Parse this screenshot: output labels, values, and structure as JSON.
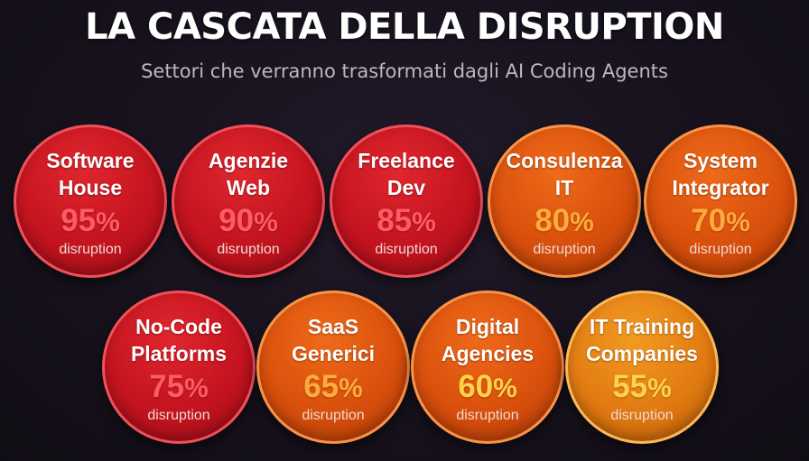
{
  "header": {
    "title": "LA CASCATA DELLA DISRUPTION",
    "subtitle": "Settori che verranno trasformati dagli AI Coding Agents"
  },
  "items": [
    {
      "line1": "Software",
      "line2": "House",
      "value": "95",
      "unit": "%",
      "label": "disruption",
      "fill": "red",
      "value_color": "red"
    },
    {
      "line1": "Agenzie",
      "line2": "Web",
      "value": "90",
      "unit": "%",
      "label": "disruption",
      "fill": "red",
      "value_color": "red"
    },
    {
      "line1": "Freelance",
      "line2": "Dev",
      "value": "85",
      "unit": "%",
      "label": "disruption",
      "fill": "red",
      "value_color": "red"
    },
    {
      "line1": "Consulenza",
      "line2": "IT",
      "value": "80",
      "unit": "%",
      "label": "disruption",
      "fill": "orange",
      "value_color": "orange"
    },
    {
      "line1": "System",
      "line2": "Integrator",
      "value": "70",
      "unit": "%",
      "label": "disruption",
      "fill": "orange",
      "value_color": "orange"
    },
    {
      "line1": "No-Code",
      "line2": "Platforms",
      "value": "75",
      "unit": "%",
      "label": "disruption",
      "fill": "red",
      "value_color": "red"
    },
    {
      "line1": "SaaS",
      "line2": "Generici",
      "value": "65",
      "unit": "%",
      "label": "disruption",
      "fill": "orange",
      "value_color": "orange"
    },
    {
      "line1": "Digital",
      "line2": "Agencies",
      "value": "60",
      "unit": "%",
      "label": "disruption",
      "fill": "orange",
      "value_color": "gold"
    },
    {
      "line1": "IT Training",
      "line2": "Companies",
      "value": "55",
      "unit": "%",
      "label": "disruption",
      "fill": "amber",
      "value_color": "gold"
    }
  ],
  "colors": {
    "background": "#17121d",
    "red": "#c4141f",
    "orange": "#d9500c",
    "amber": "#e27b12",
    "value_red": "#ff5b62",
    "value_orange": "#ffaa3e",
    "value_gold": "#ffd24a"
  }
}
